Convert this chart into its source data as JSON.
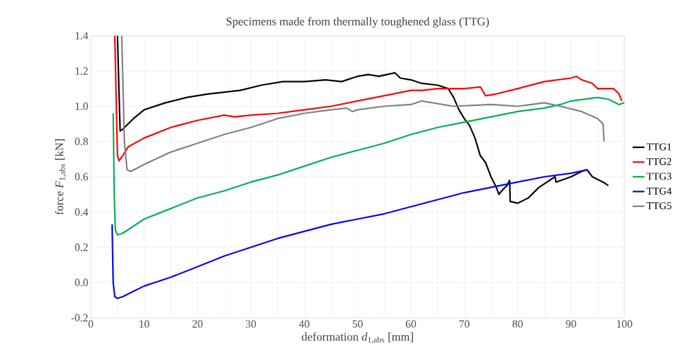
{
  "chart_data": {
    "type": "line",
    "title": "Specimens made from thermally toughened glass (TTG)",
    "xlabel": "deformation *d*$_{1,abs}$ [mm]",
    "ylabel": "force *F*$_{1,abs}$ [kN]",
    "xlim": [
      0,
      100
    ],
    "ylim": [
      -0.2,
      1.4
    ],
    "xticks": [
      0,
      10,
      20,
      30,
      40,
      50,
      60,
      70,
      80,
      90,
      100
    ],
    "yticks": [
      {
        "value": -0.2,
        "label": "-0.2"
      },
      {
        "value": 0,
        "label": "0.0"
      },
      {
        "value": 0.2,
        "label": "0.2"
      },
      {
        "value": 0.4,
        "label": "0.4"
      },
      {
        "value": 0.6,
        "label": "0.6"
      },
      {
        "value": 0.8,
        "label": "0.8"
      },
      {
        "value": 1.0,
        "label": "1.0"
      },
      {
        "value": 1.2,
        "label": "1.2"
      },
      {
        "value": 1.4,
        "label": "1.4"
      }
    ],
    "grid": true,
    "legend": "right",
    "marker": "none",
    "line_style": "solid",
    "series": [
      {
        "name": "TTG1",
        "color": "#000000",
        "x": [
          5.0,
          5.5,
          6,
          8,
          10,
          14,
          18,
          22,
          28,
          32,
          36,
          40,
          44,
          47,
          50,
          52,
          54,
          57,
          58,
          60,
          62,
          65,
          67,
          68,
          69,
          70,
          71,
          72,
          73,
          74,
          75,
          76,
          76.5,
          77,
          78,
          78.5,
          78.6,
          80,
          82,
          84,
          86,
          87,
          87.2,
          90,
          92,
          93,
          94,
          96,
          97
        ],
        "values": [
          1.4,
          0.86,
          0.87,
          0.93,
          0.98,
          1.02,
          1.05,
          1.07,
          1.09,
          1.12,
          1.14,
          1.14,
          1.15,
          1.14,
          1.17,
          1.18,
          1.17,
          1.19,
          1.16,
          1.15,
          1.13,
          1.12,
          1.1,
          1.05,
          0.98,
          0.93,
          0.89,
          0.82,
          0.72,
          0.68,
          0.6,
          0.54,
          0.5,
          0.52,
          0.55,
          0.58,
          0.46,
          0.45,
          0.48,
          0.54,
          0.58,
          0.6,
          0.57,
          0.6,
          0.63,
          0.64,
          0.6,
          0.57,
          0.55
        ]
      },
      {
        "name": "TTG2",
        "color": "#ff0000",
        "x": [
          4.5,
          5.0,
          5.3,
          6,
          7,
          10,
          15,
          20,
          25,
          27,
          30,
          35,
          40,
          45,
          50,
          55,
          60,
          62,
          65,
          70,
          73,
          74,
          76,
          80,
          85,
          90,
          91,
          92,
          94,
          95,
          98,
          99,
          99.5
        ],
        "values": [
          1.4,
          0.72,
          0.69,
          0.72,
          0.77,
          0.82,
          0.88,
          0.92,
          0.95,
          0.94,
          0.95,
          0.96,
          0.98,
          1.0,
          1.03,
          1.06,
          1.09,
          1.09,
          1.1,
          1.1,
          1.11,
          1.06,
          1.07,
          1.1,
          1.14,
          1.16,
          1.17,
          1.15,
          1.13,
          1.1,
          1.1,
          1.07,
          1.03
        ]
      },
      {
        "name": "TTG3",
        "color": "#00b050",
        "x": [
          4.2,
          4.4,
          4.6,
          5,
          6,
          8,
          10,
          15,
          20,
          25,
          30,
          35,
          40,
          45,
          50,
          55,
          60,
          65,
          70,
          75,
          80,
          85,
          88,
          90,
          95,
          97,
          99,
          100
        ],
        "values": [
          0.96,
          0.5,
          0.3,
          0.27,
          0.28,
          0.32,
          0.36,
          0.42,
          0.48,
          0.52,
          0.57,
          0.61,
          0.66,
          0.71,
          0.75,
          0.79,
          0.84,
          0.88,
          0.91,
          0.94,
          0.97,
          0.99,
          1.01,
          1.03,
          1.05,
          1.04,
          1.01,
          1.02
        ]
      },
      {
        "name": "TTG4",
        "color": "#0000ff",
        "x": [
          4.0,
          4.2,
          4.5,
          5,
          6,
          8,
          10,
          12,
          15,
          20,
          25,
          30,
          35,
          40,
          45,
          50,
          55,
          60,
          65,
          70,
          75,
          80,
          85,
          90,
          93
        ],
        "values": [
          0.33,
          0.0,
          -0.08,
          -0.09,
          -0.08,
          -0.05,
          -0.02,
          0.0,
          0.03,
          0.09,
          0.15,
          0.2,
          0.25,
          0.29,
          0.33,
          0.36,
          0.39,
          0.43,
          0.47,
          0.51,
          0.54,
          0.57,
          0.6,
          0.62,
          0.64
        ]
      },
      {
        "name": "TTG5",
        "color": "#808080",
        "x": [
          5.8,
          6.3,
          6.8,
          7.5,
          10,
          15,
          20,
          25,
          30,
          35,
          40,
          45,
          48,
          49,
          50,
          55,
          60,
          62,
          64,
          68,
          75,
          80,
          85,
          88,
          92,
          95,
          96,
          96.2
        ],
        "values": [
          1.4,
          0.8,
          0.64,
          0.63,
          0.67,
          0.74,
          0.79,
          0.84,
          0.88,
          0.93,
          0.96,
          0.98,
          0.99,
          0.97,
          0.98,
          1.0,
          1.01,
          1.03,
          1.02,
          1.0,
          1.01,
          1.0,
          1.02,
          1.0,
          0.97,
          0.93,
          0.9,
          0.8
        ]
      }
    ]
  }
}
